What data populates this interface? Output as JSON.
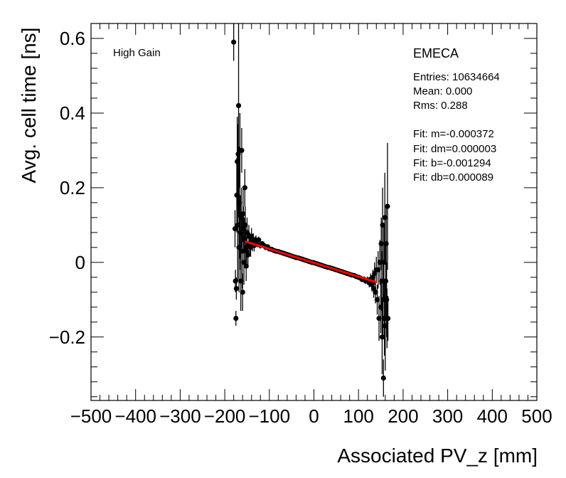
{
  "chart_data": {
    "type": "scatter",
    "title": "",
    "xlabel": "Associated PV_z [mm]",
    "ylabel": "Avg. cell time [ns]",
    "xlim": [
      -500,
      500
    ],
    "ylim": [
      -0.37,
      0.64
    ],
    "x_ticks": [
      -500,
      -400,
      -300,
      -200,
      -100,
      0,
      100,
      200,
      300,
      400,
      500
    ],
    "x_tick_labels": [
      "−500",
      "−400",
      "−300",
      "−200",
      "−100",
      "0",
      "100",
      "200",
      "300",
      "400",
      "500"
    ],
    "y_ticks": [
      -0.2,
      0,
      0.2,
      0.4,
      0.6
    ],
    "y_tick_labels": [
      "−0.2",
      "0",
      "0.2",
      "0.4",
      "0.6"
    ],
    "gain_label": "High Gain",
    "stats": {
      "name": "EMECA",
      "entries": "Entries: 10634664",
      "mean": "Mean: 0.000",
      "rms": "Rms: 0.288",
      "fit_m": "Fit: m=-0.000372",
      "fit_dm": "Fit: dm=0.000003",
      "fit_b": "Fit: b=-0.001294",
      "fit_db": "Fit: db=0.000089"
    },
    "fit_line": {
      "m": -0.000372,
      "b": -0.001294,
      "x_range": [
        -155,
        140
      ],
      "color": "#ff0000"
    },
    "series": [
      {
        "name": "points",
        "points": [
          {
            "x": -180,
            "y": 0.59,
            "err": 0.05
          },
          {
            "x": -177,
            "y": 0.09,
            "err": 0.05
          },
          {
            "x": -176,
            "y": -0.05,
            "err": 0.03
          },
          {
            "x": -175,
            "y": -0.15,
            "err": 0.02
          },
          {
            "x": -174,
            "y": -0.07,
            "err": 0.03
          },
          {
            "x": -173,
            "y": 0.18,
            "err": 0.1
          },
          {
            "x": -172,
            "y": 0.27,
            "err": 0.12
          },
          {
            "x": -171,
            "y": 0.1,
            "err": 0.15
          },
          {
            "x": -170,
            "y": 0.29,
            "err": 0.08
          },
          {
            "x": -169,
            "y": 0.42,
            "err": 0.3
          },
          {
            "x": -168,
            "y": 0.04,
            "err": 0.12
          },
          {
            "x": -167,
            "y": 0.16,
            "err": 0.15
          },
          {
            "x": -166,
            "y": 0.3,
            "err": 0.1
          },
          {
            "x": -165,
            "y": 0.08,
            "err": 0.1
          },
          {
            "x": -164,
            "y": -0.05,
            "err": 0.08
          },
          {
            "x": -163,
            "y": 0.12,
            "err": 0.08
          },
          {
            "x": -162,
            "y": 0.3,
            "err": 0.06
          },
          {
            "x": -161,
            "y": 0.03,
            "err": 0.1
          },
          {
            "x": -160,
            "y": -0.08,
            "err": 0.05
          },
          {
            "x": -159,
            "y": 0.13,
            "err": 0.07
          },
          {
            "x": -158,
            "y": 0.09,
            "err": 0.06
          },
          {
            "x": -157,
            "y": 0.0,
            "err": 0.06
          },
          {
            "x": -156,
            "y": 0.06,
            "err": 0.06
          },
          {
            "x": -155,
            "y": 0.2,
            "err": 0.05
          },
          {
            "x": -154,
            "y": 0.1,
            "err": 0.05
          },
          {
            "x": -153,
            "y": 0.04,
            "err": 0.05
          },
          {
            "x": -152,
            "y": -0.01,
            "err": 0.04
          },
          {
            "x": -151,
            "y": 0.03,
            "err": 0.04
          },
          {
            "x": -150,
            "y": 0.08,
            "err": 0.04
          },
          {
            "x": -148,
            "y": 0.02,
            "err": 0.035
          },
          {
            "x": -146,
            "y": 0.07,
            "err": 0.03
          },
          {
            "x": -144,
            "y": 0.05,
            "err": 0.03
          },
          {
            "x": -142,
            "y": 0.04,
            "err": 0.025
          },
          {
            "x": -140,
            "y": 0.07,
            "err": 0.022
          },
          {
            "x": -138,
            "y": 0.05,
            "err": 0.02
          },
          {
            "x": -136,
            "y": 0.06,
            "err": 0.018
          },
          {
            "x": -134,
            "y": 0.045,
            "err": 0.016
          },
          {
            "x": -132,
            "y": 0.055,
            "err": 0.014
          },
          {
            "x": -130,
            "y": 0.06,
            "err": 0.012
          },
          {
            "x": -127,
            "y": 0.05,
            "err": 0.01
          },
          {
            "x": -124,
            "y": 0.06,
            "err": 0.009
          },
          {
            "x": -120,
            "y": 0.045,
            "err": 0.008
          },
          {
            "x": -116,
            "y": 0.05,
            "err": 0.007
          },
          {
            "x": -112,
            "y": 0.045,
            "err": 0.006
          },
          {
            "x": -108,
            "y": 0.04,
            "err": 0.005
          },
          {
            "x": -104,
            "y": 0.042,
            "err": 0.005
          },
          {
            "x": -100,
            "y": 0.036,
            "err": 0.004
          },
          {
            "x": -95,
            "y": 0.035,
            "err": 0.004
          },
          {
            "x": -90,
            "y": 0.032,
            "err": 0.003
          },
          {
            "x": -85,
            "y": 0.03,
            "err": 0.003
          },
          {
            "x": -80,
            "y": 0.029,
            "err": 0.003
          },
          {
            "x": -75,
            "y": 0.027,
            "err": 0.003
          },
          {
            "x": -70,
            "y": 0.025,
            "err": 0.003
          },
          {
            "x": -65,
            "y": 0.023,
            "err": 0.003
          },
          {
            "x": -60,
            "y": 0.021,
            "err": 0.003
          },
          {
            "x": -55,
            "y": 0.019,
            "err": 0.003
          },
          {
            "x": -50,
            "y": 0.017,
            "err": 0.003
          },
          {
            "x": -45,
            "y": 0.015,
            "err": 0.003
          },
          {
            "x": -40,
            "y": 0.013,
            "err": 0.003
          },
          {
            "x": -35,
            "y": 0.012,
            "err": 0.003
          },
          {
            "x": -30,
            "y": 0.01,
            "err": 0.003
          },
          {
            "x": -25,
            "y": 0.008,
            "err": 0.003
          },
          {
            "x": -20,
            "y": 0.006,
            "err": 0.003
          },
          {
            "x": -15,
            "y": 0.004,
            "err": 0.003
          },
          {
            "x": -10,
            "y": 0.002,
            "err": 0.003
          },
          {
            "x": -5,
            "y": 0.0,
            "err": 0.003
          },
          {
            "x": 0,
            "y": -0.001,
            "err": 0.003
          },
          {
            "x": 5,
            "y": -0.003,
            "err": 0.003
          },
          {
            "x": 10,
            "y": -0.005,
            "err": 0.003
          },
          {
            "x": 15,
            "y": -0.007,
            "err": 0.003
          },
          {
            "x": 20,
            "y": -0.009,
            "err": 0.003
          },
          {
            "x": 25,
            "y": -0.011,
            "err": 0.003
          },
          {
            "x": 30,
            "y": -0.013,
            "err": 0.003
          },
          {
            "x": 35,
            "y": -0.014,
            "err": 0.003
          },
          {
            "x": 40,
            "y": -0.016,
            "err": 0.003
          },
          {
            "x": 45,
            "y": -0.018,
            "err": 0.003
          },
          {
            "x": 50,
            "y": -0.02,
            "err": 0.003
          },
          {
            "x": 55,
            "y": -0.022,
            "err": 0.003
          },
          {
            "x": 60,
            "y": -0.024,
            "err": 0.003
          },
          {
            "x": 65,
            "y": -0.026,
            "err": 0.003
          },
          {
            "x": 70,
            "y": -0.028,
            "err": 0.003
          },
          {
            "x": 75,
            "y": -0.03,
            "err": 0.003
          },
          {
            "x": 80,
            "y": -0.032,
            "err": 0.003
          },
          {
            "x": 85,
            "y": -0.034,
            "err": 0.004
          },
          {
            "x": 90,
            "y": -0.035,
            "err": 0.004
          },
          {
            "x": 95,
            "y": -0.038,
            "err": 0.004
          },
          {
            "x": 100,
            "y": -0.04,
            "err": 0.005
          },
          {
            "x": 104,
            "y": -0.042,
            "err": 0.005
          },
          {
            "x": 108,
            "y": -0.046,
            "err": 0.006
          },
          {
            "x": 112,
            "y": -0.045,
            "err": 0.007
          },
          {
            "x": 116,
            "y": -0.05,
            "err": 0.008
          },
          {
            "x": 120,
            "y": -0.048,
            "err": 0.01
          },
          {
            "x": 124,
            "y": -0.055,
            "err": 0.012
          },
          {
            "x": 127,
            "y": -0.045,
            "err": 0.015
          },
          {
            "x": 130,
            "y": -0.06,
            "err": 0.018
          },
          {
            "x": 132,
            "y": -0.04,
            "err": 0.02
          },
          {
            "x": 134,
            "y": -0.07,
            "err": 0.025
          },
          {
            "x": 136,
            "y": -0.03,
            "err": 0.03
          },
          {
            "x": 138,
            "y": -0.08,
            "err": 0.03
          },
          {
            "x": 140,
            "y": -0.02,
            "err": 0.035
          },
          {
            "x": 142,
            "y": -0.1,
            "err": 0.04
          },
          {
            "x": 144,
            "y": -0.02,
            "err": 0.05
          },
          {
            "x": 146,
            "y": -0.15,
            "err": 0.06
          },
          {
            "x": 148,
            "y": 0.0,
            "err": 0.06
          },
          {
            "x": 150,
            "y": -0.12,
            "err": 0.07
          },
          {
            "x": 151,
            "y": 0.05,
            "err": 0.07
          },
          {
            "x": 152,
            "y": -0.05,
            "err": 0.08
          },
          {
            "x": 153,
            "y": -0.2,
            "err": 0.1
          },
          {
            "x": 154,
            "y": 0.1,
            "err": 0.1
          },
          {
            "x": 155,
            "y": -0.1,
            "err": 0.1
          },
          {
            "x": 156,
            "y": -0.31,
            "err": 0.05
          },
          {
            "x": 157,
            "y": 0.0,
            "err": 0.1
          },
          {
            "x": 158,
            "y": -0.15,
            "err": 0.1
          },
          {
            "x": 159,
            "y": 0.12,
            "err": 0.12
          },
          {
            "x": 160,
            "y": -0.17,
            "err": 0.12
          },
          {
            "x": 161,
            "y": -0.05,
            "err": 0.1
          },
          {
            "x": 162,
            "y": 0.05,
            "err": 0.1
          },
          {
            "x": 163,
            "y": -0.1,
            "err": 0.1
          },
          {
            "x": 164,
            "y": -0.15,
            "err": 0.08
          },
          {
            "x": 165,
            "y": 0.15,
            "err": 0.17
          },
          {
            "x": 166,
            "y": -0.15,
            "err": 0.06
          }
        ]
      }
    ]
  }
}
